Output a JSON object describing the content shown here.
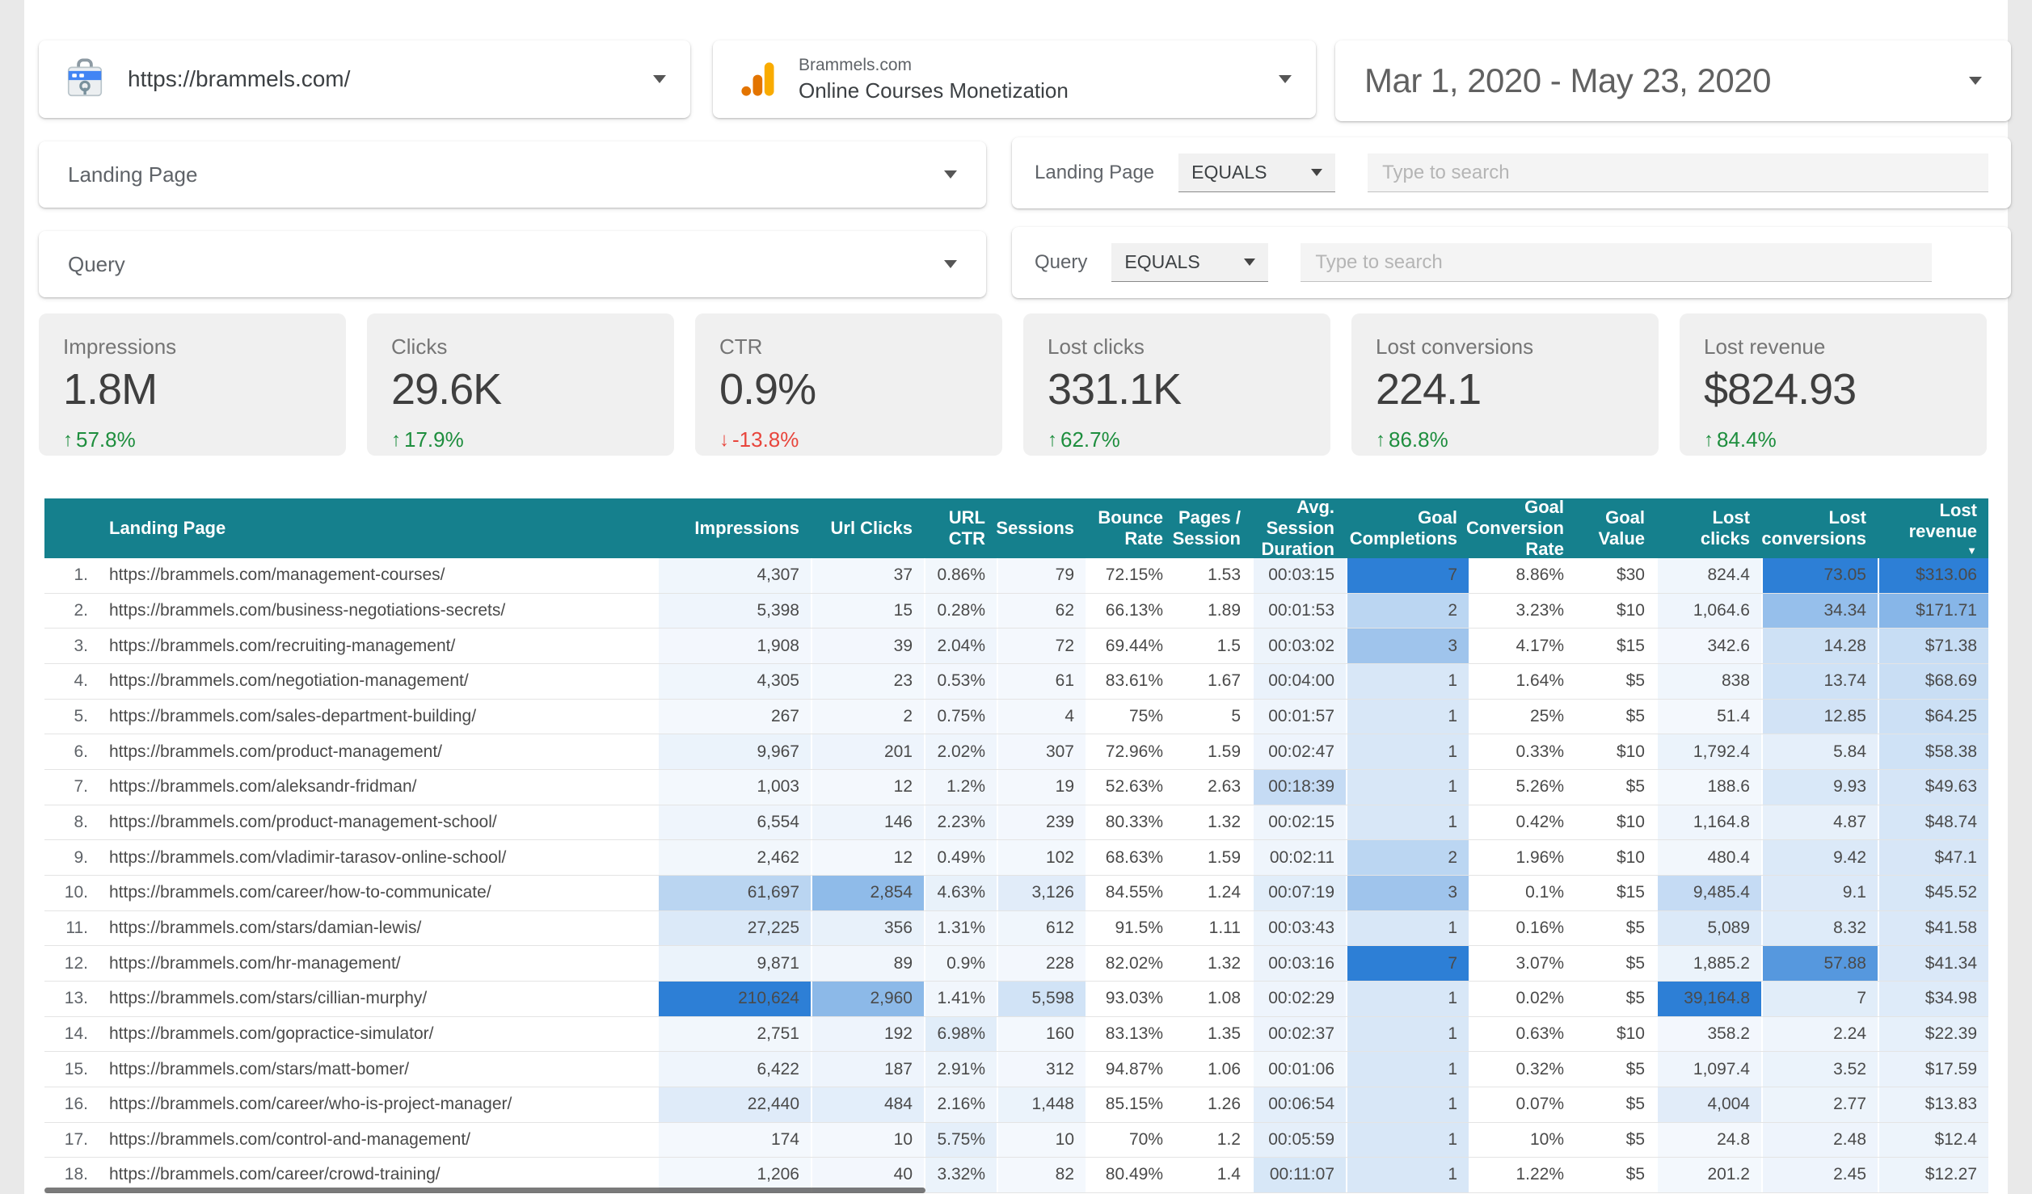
{
  "connectors": {
    "site": {
      "url": "https://brammels.com/"
    },
    "analytics": {
      "line1": "Brammels.com",
      "line2": "Online Courses Monetization"
    },
    "date_range": "Mar 1, 2020 - May 23, 2020"
  },
  "filters": [
    {
      "label": "Landing Page",
      "operator": "EQUALS",
      "search_placeholder": "Type to search"
    },
    {
      "label": "Query",
      "operator": "EQUALS",
      "search_placeholder": "Type to search"
    }
  ],
  "scorecards": [
    {
      "label": "Impressions",
      "value": "1.8M",
      "delta": "57.8%",
      "direction": "up"
    },
    {
      "label": "Clicks",
      "value": "29.6K",
      "delta": "17.9%",
      "direction": "up"
    },
    {
      "label": "CTR",
      "value": "0.9%",
      "delta": "-13.8%",
      "direction": "down"
    },
    {
      "label": "Lost clicks",
      "value": "331.1K",
      "delta": "62.7%",
      "direction": "up"
    },
    {
      "label": "Lost conversions",
      "value": "224.1",
      "delta": "86.8%",
      "direction": "up"
    },
    {
      "label": "Lost revenue",
      "value": "$824.93",
      "delta": "84.4%",
      "direction": "up"
    }
  ],
  "table": {
    "columns": [
      "Landing Page",
      "Impressions",
      "Url Clicks",
      "URL CTR",
      "Sessions",
      "Bounce Rate",
      "Pages / Session",
      "Avg. Session Duration",
      "Goal Completions",
      "Goal Conversion Rate",
      "Goal Value",
      "Lost clicks",
      "Lost conversions",
      "Lost revenue"
    ],
    "sort_column": "Lost revenue",
    "sort_direction": "desc",
    "rows": [
      {
        "index": "1.",
        "landing_page": "https://brammels.com/management-courses/",
        "cells": [
          "4,307",
          "37",
          "0.86%",
          "79",
          "72.15%",
          "1.53",
          "00:03:15",
          "7",
          "8.86%",
          "$30",
          "824.4",
          "73.05",
          "$313.06"
        ]
      },
      {
        "index": "2.",
        "landing_page": "https://brammels.com/business-negotiations-secrets/",
        "cells": [
          "5,398",
          "15",
          "0.28%",
          "62",
          "66.13%",
          "1.89",
          "00:01:53",
          "2",
          "3.23%",
          "$10",
          "1,064.6",
          "34.34",
          "$171.71"
        ]
      },
      {
        "index": "3.",
        "landing_page": "https://brammels.com/recruiting-management/",
        "cells": [
          "1,908",
          "39",
          "2.04%",
          "72",
          "69.44%",
          "1.5",
          "00:03:02",
          "3",
          "4.17%",
          "$15",
          "342.6",
          "14.28",
          "$71.38"
        ]
      },
      {
        "index": "4.",
        "landing_page": "https://brammels.com/negotiation-management/",
        "cells": [
          "4,305",
          "23",
          "0.53%",
          "61",
          "83.61%",
          "1.67",
          "00:04:00",
          "1",
          "1.64%",
          "$5",
          "838",
          "13.74",
          "$68.69"
        ]
      },
      {
        "index": "5.",
        "landing_page": "https://brammels.com/sales-department-building/",
        "cells": [
          "267",
          "2",
          "0.75%",
          "4",
          "75%",
          "5",
          "00:01:57",
          "1",
          "25%",
          "$5",
          "51.4",
          "12.85",
          "$64.25"
        ]
      },
      {
        "index": "6.",
        "landing_page": "https://brammels.com/product-management/",
        "cells": [
          "9,967",
          "201",
          "2.02%",
          "307",
          "72.96%",
          "1.59",
          "00:02:47",
          "1",
          "0.33%",
          "$10",
          "1,792.4",
          "5.84",
          "$58.38"
        ]
      },
      {
        "index": "7.",
        "landing_page": "https://brammels.com/aleksandr-fridman/",
        "cells": [
          "1,003",
          "12",
          "1.2%",
          "19",
          "52.63%",
          "2.63",
          "00:18:39",
          "1",
          "5.26%",
          "$5",
          "188.6",
          "9.93",
          "$49.63"
        ]
      },
      {
        "index": "8.",
        "landing_page": "https://brammels.com/product-management-school/",
        "cells": [
          "6,554",
          "146",
          "2.23%",
          "239",
          "80.33%",
          "1.32",
          "00:02:15",
          "1",
          "0.42%",
          "$10",
          "1,164.8",
          "4.87",
          "$48.74"
        ]
      },
      {
        "index": "9.",
        "landing_page": "https://brammels.com/vladimir-tarasov-online-school/",
        "cells": [
          "2,462",
          "12",
          "0.49%",
          "102",
          "68.63%",
          "1.59",
          "00:02:11",
          "2",
          "1.96%",
          "$10",
          "480.4",
          "9.42",
          "$47.1"
        ]
      },
      {
        "index": "10.",
        "landing_page": "https://brammels.com/career/how-to-communicate/",
        "cells": [
          "61,697",
          "2,854",
          "4.63%",
          "3,126",
          "84.55%",
          "1.24",
          "00:07:19",
          "3",
          "0.1%",
          "$15",
          "9,485.4",
          "9.1",
          "$45.52"
        ]
      },
      {
        "index": "11.",
        "landing_page": "https://brammels.com/stars/damian-lewis/",
        "cells": [
          "27,225",
          "356",
          "1.31%",
          "612",
          "91.5%",
          "1.11",
          "00:03:43",
          "1",
          "0.16%",
          "$5",
          "5,089",
          "8.32",
          "$41.58"
        ]
      },
      {
        "index": "12.",
        "landing_page": "https://brammels.com/hr-management/",
        "cells": [
          "9,871",
          "89",
          "0.9%",
          "228",
          "82.02%",
          "1.32",
          "00:03:16",
          "7",
          "3.07%",
          "$5",
          "1,885.2",
          "57.88",
          "$41.34"
        ]
      },
      {
        "index": "13.",
        "landing_page": "https://brammels.com/stars/cillian-murphy/",
        "cells": [
          "210,624",
          "2,960",
          "1.41%",
          "5,598",
          "93.03%",
          "1.08",
          "00:02:29",
          "1",
          "0.02%",
          "$5",
          "39,164.8",
          "7",
          "$34.98"
        ]
      },
      {
        "index": "14.",
        "landing_page": "https://brammels.com/gopractice-simulator/",
        "cells": [
          "2,751",
          "192",
          "6.98%",
          "160",
          "83.13%",
          "1.35",
          "00:02:37",
          "1",
          "0.63%",
          "$10",
          "358.2",
          "2.24",
          "$22.39"
        ]
      },
      {
        "index": "15.",
        "landing_page": "https://brammels.com/stars/matt-bomer/",
        "cells": [
          "6,422",
          "187",
          "2.91%",
          "312",
          "94.87%",
          "1.06",
          "00:01:06",
          "1",
          "0.32%",
          "$5",
          "1,097.4",
          "3.52",
          "$17.59"
        ]
      },
      {
        "index": "16.",
        "landing_page": "https://brammels.com/career/who-is-project-manager/",
        "cells": [
          "22,440",
          "484",
          "2.16%",
          "1,448",
          "85.15%",
          "1.26",
          "00:06:54",
          "1",
          "0.07%",
          "$5",
          "4,004",
          "2.77",
          "$13.83"
        ]
      },
      {
        "index": "17.",
        "landing_page": "https://brammels.com/control-and-management/",
        "cells": [
          "174",
          "10",
          "5.75%",
          "10",
          "70%",
          "1.2",
          "00:05:59",
          "1",
          "10%",
          "$5",
          "24.8",
          "2.48",
          "$12.4"
        ]
      },
      {
        "index": "18.",
        "landing_page": "https://brammels.com/career/crowd-training/",
        "cells": [
          "1,206",
          "40",
          "3.32%",
          "82",
          "80.49%",
          "1.4",
          "00:11:07",
          "1",
          "1.22%",
          "$5",
          "201.2",
          "2.45",
          "$12.27"
        ]
      }
    ]
  },
  "colors": {
    "header_teal": "#15808d",
    "heat_blue": "#2d7fd6",
    "positive_green": "#1e8e3e",
    "negative_red": "#e8453c",
    "analytics_amber": "#f9ab00",
    "analytics_orange": "#e37400",
    "search_console_blue": "#4285f4"
  }
}
